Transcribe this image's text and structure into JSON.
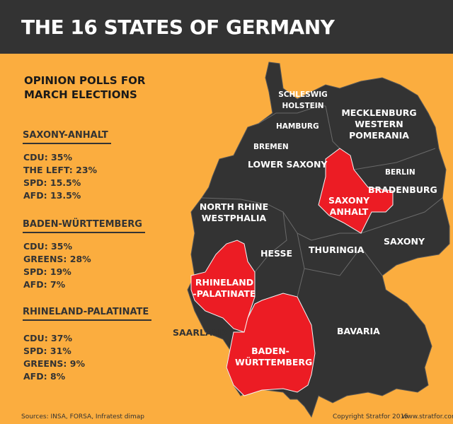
{
  "title": "THE 16 STATES OF GERMANY",
  "subtitle": "OPINION POLLS FOR MARCH ELECTIONS",
  "polls": [
    {
      "state": "SAXONY-ANHALT",
      "results": [
        "CDU: 35%",
        "THE LEFT: 23%",
        "SPD: 15.5%",
        "AFD: 13.5%"
      ]
    },
    {
      "state": "BADEN-WÜRTTEMBERG",
      "results": [
        "CDU: 35%",
        "GREENS: 28%",
        "SPD: 19%",
        "AFD: 7%"
      ]
    },
    {
      "state": "RHINELAND-PALATINATE",
      "results": [
        "CDU: 37%",
        "SPD: 31%",
        "GREENS: 9%",
        "AFD: 8%"
      ]
    }
  ],
  "states": {
    "schleswig": "SCHLESWIG HOLSTEIN",
    "hamburg": "HAMBURG",
    "mecklenburg": "MECKLENBURG WESTERN POMERANIA",
    "bremen": "BREMEN",
    "lower_saxony": "LOWER SAXONY",
    "berlin": "BERLIN",
    "brandenburg": "BRADENBURG",
    "saxony_anhalt": "SAXONY ANHALT",
    "nrw": "NORTH RHINE WESTPHALIA",
    "hesse": "HESSE",
    "thuringia": "THURINGIA",
    "saxony": "SAXONY",
    "rhineland": "RHINELAND -PALATINATE",
    "saarland": "SAARLAND",
    "bavaria": "BAVARIA",
    "baden": "BADEN- WÜRTTEMBERG"
  },
  "colors": {
    "background": "#fbad3f",
    "map": "#333333",
    "highlight": "#ec1c24"
  },
  "footer": {
    "sources": "Sources: INSA, FORSA, Infratest dimap",
    "copyright": "Copyright Stratfor 2015",
    "url": "www.stratfor.com"
  }
}
